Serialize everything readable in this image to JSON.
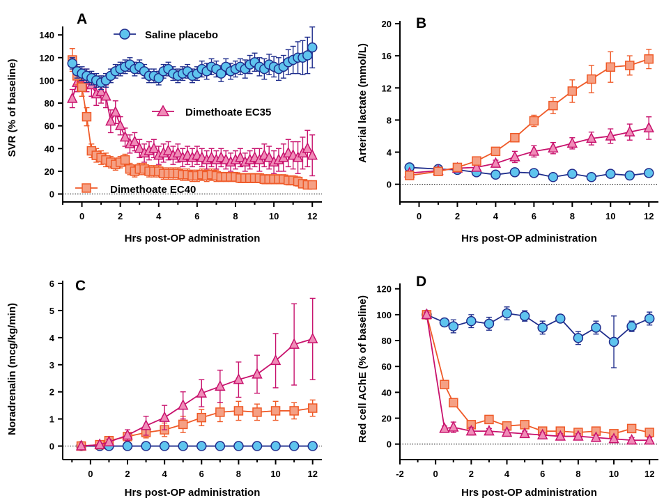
{
  "colors": {
    "saline": "#1f2d8c",
    "saline_fill": "#5fc4ee",
    "ec35": "#c8126d",
    "ec35_fill": "#f08cb8",
    "ec40": "#ef5a28",
    "ec40_fill": "#f5a084"
  },
  "chart_data": [
    {
      "panel": "A",
      "type": "line",
      "xlabel": "Hrs post-OP administration",
      "ylabel": "SVR (% of baseline)",
      "xlim": [
        -1,
        12.5
      ],
      "ylim": [
        -7,
        145
      ],
      "xticks": [
        0,
        2,
        4,
        6,
        8,
        10,
        12
      ],
      "yticks": [
        0,
        20,
        40,
        60,
        80,
        100,
        120,
        140
      ],
      "series": [
        {
          "name": "Saline placebo",
          "marker": "circle",
          "x": [
            -0.5,
            -0.25,
            0,
            0.25,
            0.5,
            0.75,
            1,
            1.25,
            1.5,
            1.75,
            2,
            2.25,
            2.5,
            2.75,
            3,
            3.25,
            3.5,
            3.75,
            4,
            4.25,
            4.5,
            4.75,
            5,
            5.25,
            5.5,
            5.75,
            6,
            6.25,
            6.5,
            6.75,
            7,
            7.25,
            7.5,
            7.75,
            8,
            8.25,
            8.5,
            8.75,
            9,
            9.25,
            9.5,
            9.75,
            10,
            10.25,
            10.5,
            10.75,
            11,
            11.25,
            11.5,
            11.75,
            12
          ],
          "y": [
            115,
            108,
            106,
            104,
            102,
            100,
            98,
            100,
            104,
            108,
            110,
            112,
            114,
            110,
            112,
            108,
            104,
            104,
            102,
            108,
            110,
            106,
            104,
            106,
            108,
            104,
            106,
            110,
            108,
            112,
            110,
            106,
            112,
            108,
            110,
            112,
            110,
            114,
            116,
            112,
            110,
            114,
            112,
            110,
            112,
            116,
            118,
            120,
            120,
            122,
            129
          ],
          "err": [
            5,
            6,
            6,
            6,
            6,
            6,
            6,
            6,
            6,
            6,
            6,
            6,
            6,
            6,
            6,
            6,
            6,
            6,
            6,
            6,
            6,
            6,
            6,
            6,
            6,
            6,
            6,
            7,
            7,
            7,
            7,
            7,
            7,
            7,
            7,
            7,
            8,
            8,
            8,
            8,
            9,
            9,
            9,
            10,
            10,
            11,
            12,
            14,
            15,
            16,
            18
          ]
        },
        {
          "name": "Dimethoate EC35",
          "marker": "triangle",
          "x": [
            -0.5,
            -0.25,
            0,
            0.25,
            0.5,
            0.75,
            1,
            1.25,
            1.5,
            1.75,
            2,
            2.25,
            2.5,
            2.75,
            3,
            3.25,
            3.5,
            3.75,
            4,
            4.25,
            4.5,
            4.75,
            5,
            5.25,
            5.5,
            5.75,
            6,
            6.25,
            6.5,
            6.75,
            7,
            7.25,
            7.5,
            7.75,
            8,
            8.25,
            8.5,
            8.75,
            9,
            9.25,
            9.5,
            9.75,
            10,
            10.25,
            10.5,
            10.75,
            11,
            11.25,
            11.5,
            11.75,
            12
          ],
          "y": [
            84,
            98,
            102,
            100,
            96,
            88,
            90,
            86,
            64,
            72,
            60,
            50,
            44,
            46,
            40,
            36,
            38,
            40,
            34,
            36,
            38,
            34,
            36,
            32,
            34,
            32,
            34,
            32,
            30,
            32,
            30,
            32,
            30,
            28,
            30,
            32,
            28,
            30,
            32,
            30,
            34,
            32,
            28,
            30,
            32,
            36,
            34,
            32,
            36,
            40,
            34
          ],
          "err": [
            8,
            8,
            8,
            10,
            10,
            10,
            10,
            10,
            10,
            10,
            8,
            8,
            8,
            8,
            8,
            8,
            8,
            8,
            8,
            8,
            8,
            8,
            8,
            8,
            8,
            8,
            8,
            8,
            8,
            8,
            8,
            8,
            8,
            8,
            8,
            8,
            8,
            8,
            8,
            10,
            10,
            10,
            10,
            10,
            12,
            12,
            12,
            14,
            14,
            16,
            18
          ]
        },
        {
          "name": "Dimethoate EC40",
          "marker": "square",
          "x": [
            -0.5,
            -0.25,
            0,
            0.25,
            0.5,
            0.75,
            1,
            1.25,
            1.5,
            1.75,
            2,
            2.25,
            2.5,
            2.75,
            3,
            3.25,
            3.5,
            3.75,
            4,
            4.25,
            4.5,
            4.75,
            5,
            5.25,
            5.5,
            5.75,
            6,
            6.25,
            6.5,
            6.75,
            7,
            7.25,
            7.5,
            7.75,
            8,
            8.25,
            8.5,
            8.75,
            9,
            9.25,
            9.5,
            9.75,
            10,
            10.25,
            10.5,
            10.75,
            11,
            11.25,
            11.5,
            11.75,
            12
          ],
          "y": [
            118,
            104,
            94,
            68,
            38,
            34,
            32,
            30,
            28,
            26,
            28,
            30,
            22,
            20,
            22,
            22,
            20,
            20,
            20,
            18,
            18,
            18,
            18,
            17,
            17,
            16,
            16,
            17,
            16,
            17,
            16,
            15,
            15,
            15,
            15,
            14,
            14,
            14,
            14,
            14,
            13,
            13,
            13,
            13,
            13,
            12,
            12,
            11,
            9,
            8,
            8
          ],
          "err": [
            10,
            8,
            8,
            8,
            6,
            6,
            6,
            6,
            5,
            5,
            5,
            5,
            5,
            5,
            5,
            5,
            5,
            5,
            5,
            5,
            5,
            5,
            5,
            5,
            5,
            5,
            5,
            5,
            5,
            5,
            5,
            4,
            4,
            4,
            4,
            4,
            4,
            4,
            4,
            4,
            4,
            4,
            4,
            4,
            4,
            4,
            4,
            4,
            3,
            3,
            3
          ]
        }
      ]
    },
    {
      "panel": "B",
      "type": "line",
      "xlabel": "Hrs post-OP administration",
      "ylabel": "Arterial lactate (mmol/L)",
      "xlim": [
        -1,
        12.5
      ],
      "ylim": [
        -2.2,
        20
      ],
      "xticks": [
        0,
        2,
        4,
        6,
        8,
        10,
        12
      ],
      "yticks": [
        0,
        4,
        8,
        12,
        16,
        20
      ],
      "series": [
        {
          "name": "Saline placebo",
          "marker": "circle",
          "x": [
            -0.5,
            1,
            2,
            3,
            4,
            5,
            6,
            7,
            8,
            9,
            10,
            11,
            12
          ],
          "y": [
            2.1,
            1.9,
            1.8,
            1.5,
            1.2,
            1.5,
            1.4,
            0.9,
            1.3,
            0.9,
            1.3,
            1.1,
            1.4
          ],
          "err": [
            0.3,
            0.3,
            0.3,
            0.3,
            0.3,
            0.3,
            0.3,
            0.3,
            0.3,
            0.3,
            0.3,
            0.3,
            0.3
          ]
        },
        {
          "name": "Dimethoate EC35",
          "marker": "triangle",
          "x": [
            -0.5,
            1,
            2,
            3,
            4,
            5,
            6,
            7,
            8,
            9,
            10,
            11,
            12
          ],
          "y": [
            1.4,
            1.7,
            2.0,
            2.1,
            2.6,
            3.4,
            4.1,
            4.5,
            5.1,
            5.7,
            6.0,
            6.5,
            7.0
          ],
          "err": [
            0.3,
            0.3,
            0.3,
            0.4,
            0.4,
            0.7,
            0.7,
            0.7,
            0.7,
            0.8,
            0.9,
            1.0,
            1.4
          ]
        },
        {
          "name": "Dimethoate EC40",
          "marker": "square",
          "x": [
            -0.5,
            1,
            2,
            3,
            4,
            5,
            6,
            7,
            8,
            9,
            10,
            11,
            12
          ],
          "y": [
            1.1,
            1.6,
            2.1,
            2.9,
            4.1,
            5.8,
            7.9,
            9.8,
            11.6,
            13.1,
            14.6,
            14.8,
            15.6
          ],
          "err": [
            0.3,
            0.3,
            0.3,
            0.3,
            0.4,
            0.4,
            0.7,
            1.0,
            1.4,
            1.7,
            1.9,
            1.2,
            1.2
          ]
        }
      ]
    },
    {
      "panel": "C",
      "type": "line",
      "xlabel": "Hrs post-OP administration",
      "ylabel": "Noradrenalin (mcg/kg/min)",
      "xlim": [
        -1.5,
        12.5
      ],
      "ylim": [
        -0.5,
        6
      ],
      "xticks": [
        0,
        2,
        4,
        6,
        8,
        10,
        12
      ],
      "yticks": [
        0,
        1,
        2,
        3,
        4,
        5,
        6
      ],
      "series": [
        {
          "name": "Saline placebo",
          "marker": "circle",
          "x": [
            -0.5,
            0.5,
            1,
            2,
            3,
            4,
            5,
            6,
            7,
            8,
            9,
            10,
            11,
            12
          ],
          "y": [
            0,
            0,
            0,
            0,
            0,
            0,
            0,
            0,
            0,
            0,
            0,
            0,
            0,
            0
          ],
          "err": [
            0,
            0,
            0,
            0,
            0,
            0,
            0,
            0,
            0,
            0,
            0,
            0,
            0,
            0
          ]
        },
        {
          "name": "Dimethoate EC35",
          "marker": "triangle",
          "x": [
            -0.5,
            0.5,
            1,
            2,
            3,
            4,
            5,
            6,
            7,
            8,
            9,
            10,
            11,
            12
          ],
          "y": [
            0,
            0.05,
            0.15,
            0.4,
            0.75,
            1.05,
            1.5,
            1.95,
            2.2,
            2.45,
            2.65,
            3.15,
            3.75,
            3.95
          ],
          "err": [
            0,
            0.05,
            0.1,
            0.2,
            0.35,
            0.45,
            0.5,
            0.5,
            0.6,
            0.65,
            0.7,
            1.0,
            1.5,
            1.5
          ]
        },
        {
          "name": "Dimethoate EC40",
          "marker": "square",
          "x": [
            -0.5,
            0.5,
            1,
            2,
            3,
            4,
            5,
            6,
            7,
            8,
            9,
            10,
            11,
            12
          ],
          "y": [
            0,
            0.05,
            0.2,
            0.35,
            0.5,
            0.6,
            0.8,
            1.05,
            1.25,
            1.3,
            1.25,
            1.3,
            1.3,
            1.4
          ],
          "err": [
            0,
            0.05,
            0.1,
            0.15,
            0.2,
            0.25,
            0.3,
            0.3,
            0.35,
            0.35,
            0.3,
            0.35,
            0.3,
            0.3
          ]
        }
      ]
    },
    {
      "panel": "D",
      "type": "line",
      "xlabel": "Hrs post-OP administration",
      "ylabel": "Red cell AChE (% of baseline)",
      "xlim": [
        -2,
        12.5
      ],
      "ylim": [
        -12,
        122
      ],
      "xticks": [
        -2,
        0,
        2,
        4,
        6,
        8,
        10,
        12
      ],
      "yticks": [
        0,
        20,
        40,
        60,
        80,
        100,
        120
      ],
      "series": [
        {
          "name": "Saline placebo",
          "marker": "circle",
          "x": [
            -0.5,
            0.5,
            1,
            2,
            3,
            4,
            5,
            6,
            7,
            8,
            9,
            10,
            11,
            12
          ],
          "y": [
            100,
            94,
            91,
            95,
            93,
            101,
            99,
            90,
            97,
            82,
            90,
            79,
            91,
            97
          ],
          "err": [
            2,
            3,
            5,
            5,
            5,
            5,
            4,
            5,
            3,
            5,
            5,
            20,
            4,
            5
          ]
        },
        {
          "name": "Dimethoate EC35",
          "marker": "triangle",
          "x": [
            -0.5,
            0.5,
            1,
            2,
            3,
            4,
            5,
            6,
            7,
            8,
            9,
            10,
            11,
            12
          ],
          "y": [
            100,
            12,
            13,
            10,
            10,
            9,
            8,
            7,
            6,
            6,
            5,
            4,
            3,
            3
          ],
          "err": [
            2,
            2,
            4,
            3,
            2,
            2,
            2,
            2,
            2,
            2,
            2,
            2,
            2,
            2
          ]
        },
        {
          "name": "Dimethoate EC40",
          "marker": "square",
          "x": [
            -0.5,
            0.5,
            1,
            2,
            3,
            4,
            5,
            6,
            7,
            8,
            9,
            10,
            11,
            12
          ],
          "y": [
            100,
            46,
            32,
            15,
            19,
            14,
            15,
            10,
            10,
            9,
            10,
            8,
            12,
            9
          ],
          "err": [
            2,
            3,
            3,
            2,
            2,
            2,
            2,
            2,
            2,
            2,
            2,
            2,
            3,
            2
          ]
        }
      ]
    }
  ],
  "panel_letters": [
    "A",
    "B",
    "C",
    "D"
  ],
  "legend": {
    "saline": "Saline placebo",
    "ec35": "Dimethoate EC35",
    "ec40": "Dimethoate EC40"
  }
}
